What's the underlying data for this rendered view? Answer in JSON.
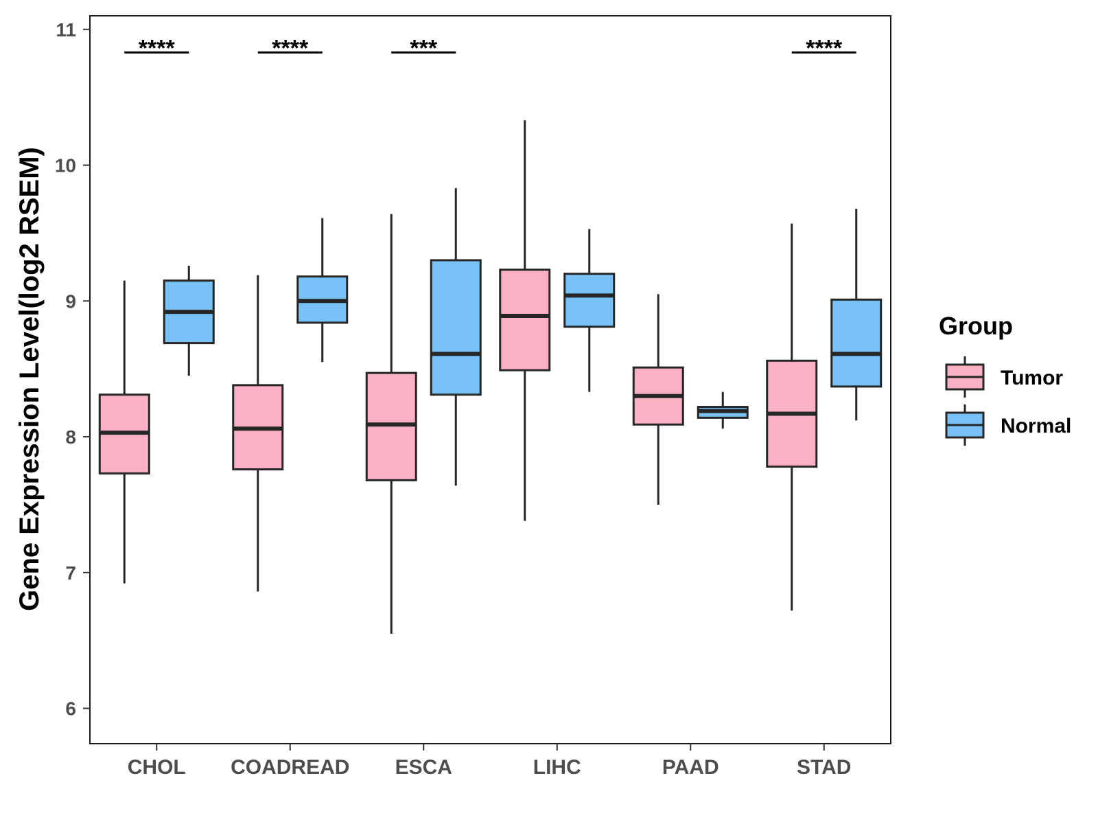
{
  "chart_data": {
    "type": "boxplot",
    "ylabel": "Gene Expression Level(log2 RSEM)",
    "xlabel": "",
    "ylim": [
      5.74,
      11.1
    ],
    "yticks": [
      6,
      7,
      8,
      9,
      10,
      11
    ],
    "categories": [
      "CHOL",
      "COADREAD",
      "ESCA",
      "LIHC",
      "PAAD",
      "STAD"
    ],
    "grid": false,
    "legend": {
      "title": "Group",
      "position": "right",
      "items": [
        {
          "label": "Tumor",
          "color": "#fbb1c3"
        },
        {
          "label": "Normal",
          "color": "#77c1f7"
        }
      ]
    },
    "series": [
      {
        "name": "Tumor",
        "color": "#fbb1c3",
        "boxes": [
          {
            "category": "CHOL",
            "low": 6.92,
            "q1": 7.73,
            "median": 8.03,
            "q3": 8.31,
            "high": 9.15
          },
          {
            "category": "COADREAD",
            "low": 6.86,
            "q1": 7.76,
            "median": 8.06,
            "q3": 8.38,
            "high": 9.19
          },
          {
            "category": "ESCA",
            "low": 6.55,
            "q1": 7.68,
            "median": 8.09,
            "q3": 8.47,
            "high": 9.64
          },
          {
            "category": "LIHC",
            "low": 7.38,
            "q1": 8.49,
            "median": 8.89,
            "q3": 9.23,
            "high": 10.33
          },
          {
            "category": "PAAD",
            "low": 7.5,
            "q1": 8.09,
            "median": 8.3,
            "q3": 8.51,
            "high": 9.05
          },
          {
            "category": "STAD",
            "low": 6.72,
            "q1": 7.78,
            "median": 8.17,
            "q3": 8.56,
            "high": 9.57
          }
        ]
      },
      {
        "name": "Normal",
        "color": "#77c1f7",
        "boxes": [
          {
            "category": "CHOL",
            "low": 8.45,
            "q1": 8.69,
            "median": 8.92,
            "q3": 9.15,
            "high": 9.26
          },
          {
            "category": "COADREAD",
            "low": 8.55,
            "q1": 8.84,
            "median": 9.0,
            "q3": 9.18,
            "high": 9.61
          },
          {
            "category": "ESCA",
            "low": 7.64,
            "q1": 8.31,
            "median": 8.61,
            "q3": 9.3,
            "high": 9.83
          },
          {
            "category": "LIHC",
            "low": 8.33,
            "q1": 8.81,
            "median": 9.04,
            "q3": 9.2,
            "high": 9.53
          },
          {
            "category": "PAAD",
            "low": 8.06,
            "q1": 8.14,
            "median": 8.19,
            "q3": 8.22,
            "high": 8.33
          },
          {
            "category": "STAD",
            "low": 8.12,
            "q1": 8.37,
            "median": 8.61,
            "q3": 9.01,
            "high": 9.68
          }
        ]
      }
    ],
    "significance": [
      {
        "category": "CHOL",
        "label": "****"
      },
      {
        "category": "COADREAD",
        "label": "****"
      },
      {
        "category": "ESCA",
        "label": "***"
      },
      {
        "category": "STAD",
        "label": "****"
      }
    ],
    "significance_y": 10.83
  }
}
